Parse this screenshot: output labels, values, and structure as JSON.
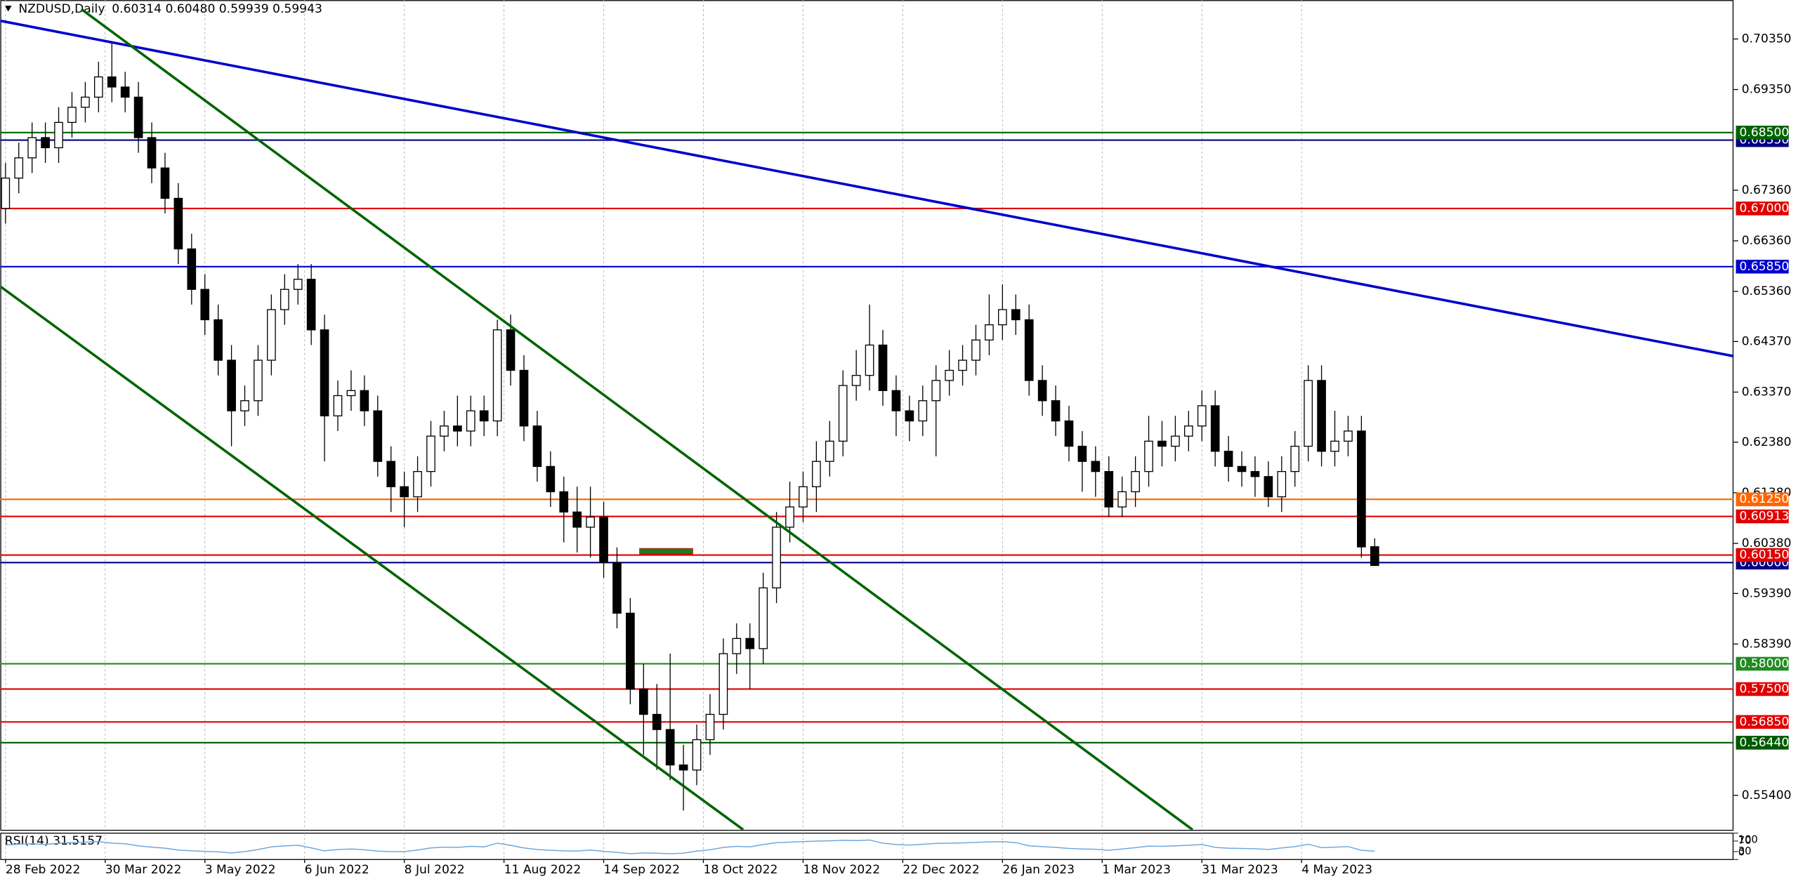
{
  "chart_data": {
    "type": "candlestick",
    "title": "NZDUSD,Daily",
    "subtitle": "0.60314 0.60480 0.59939 0.59943",
    "color_up": "#ffffff",
    "color_down": "#000000",
    "open": [
      0.67,
      0.676,
      0.68,
      0.684,
      0.682,
      0.687,
      0.69,
      0.692,
      0.696,
      0.694,
      0.692,
      0.684,
      0.678,
      0.672,
      0.662,
      0.654,
      0.648,
      0.64,
      0.63,
      0.632,
      0.64,
      0.65,
      0.654,
      0.656,
      0.646,
      0.629,
      0.633,
      0.634,
      0.63,
      0.62,
      0.615,
      0.613,
      0.618,
      0.625,
      0.627,
      0.626,
      0.63,
      0.628,
      0.646,
      0.638,
      0.627,
      0.619,
      0.614,
      0.61,
      0.607,
      0.609,
      0.6,
      0.59,
      0.575,
      0.57,
      0.567,
      0.56,
      0.559,
      0.565,
      0.57,
      0.582,
      0.585,
      0.583,
      0.595,
      0.607,
      0.611,
      0.615,
      0.62,
      0.624,
      0.635,
      0.637,
      0.643,
      0.634,
      0.63,
      0.628,
      0.632,
      0.636,
      0.638,
      0.64,
      0.644,
      0.647,
      0.65,
      0.648,
      0.636,
      0.632,
      0.628,
      0.623,
      0.62,
      0.618,
      0.611,
      0.614,
      0.618,
      0.624,
      0.623,
      0.625,
      0.627,
      0.631,
      0.622,
      0.619,
      0.618,
      0.617,
      0.613,
      0.618,
      0.623,
      0.636,
      0.622,
      0.624,
      0.626,
      0.60314
    ],
    "high": [
      0.679,
      0.683,
      0.687,
      0.687,
      0.69,
      0.693,
      0.695,
      0.699,
      0.703,
      0.697,
      0.695,
      0.687,
      0.681,
      0.675,
      0.665,
      0.657,
      0.651,
      0.643,
      0.635,
      0.643,
      0.653,
      0.657,
      0.659,
      0.659,
      0.649,
      0.636,
      0.638,
      0.637,
      0.633,
      0.623,
      0.618,
      0.621,
      0.628,
      0.63,
      0.633,
      0.633,
      0.633,
      0.648,
      0.649,
      0.641,
      0.63,
      0.622,
      0.617,
      0.615,
      0.615,
      0.612,
      0.603,
      0.593,
      0.58,
      0.576,
      0.582,
      0.564,
      0.568,
      0.574,
      0.585,
      0.588,
      0.588,
      0.598,
      0.61,
      0.616,
      0.618,
      0.624,
      0.628,
      0.638,
      0.642,
      0.651,
      0.646,
      0.637,
      0.633,
      0.635,
      0.639,
      0.642,
      0.643,
      0.647,
      0.653,
      0.655,
      0.653,
      0.651,
      0.639,
      0.635,
      0.631,
      0.626,
      0.623,
      0.621,
      0.617,
      0.621,
      0.629,
      0.628,
      0.629,
      0.63,
      0.634,
      0.634,
      0.625,
      0.622,
      0.621,
      0.62,
      0.621,
      0.626,
      0.639,
      0.639,
      0.63,
      0.629,
      0.629,
      0.6048
    ],
    "low": [
      0.667,
      0.673,
      0.677,
      0.679,
      0.679,
      0.684,
      0.687,
      0.689,
      0.691,
      0.689,
      0.681,
      0.675,
      0.669,
      0.659,
      0.651,
      0.645,
      0.637,
      0.623,
      0.627,
      0.629,
      0.637,
      0.647,
      0.651,
      0.643,
      0.62,
      0.626,
      0.63,
      0.627,
      0.617,
      0.61,
      0.607,
      0.61,
      0.615,
      0.622,
      0.623,
      0.623,
      0.625,
      0.625,
      0.635,
      0.624,
      0.616,
      0.611,
      0.604,
      0.602,
      0.601,
      0.597,
      0.587,
      0.572,
      0.562,
      0.559,
      0.557,
      0.551,
      0.556,
      0.562,
      0.567,
      0.578,
      0.575,
      0.58,
      0.592,
      0.604,
      0.608,
      0.61,
      0.617,
      0.621,
      0.632,
      0.634,
      0.631,
      0.625,
      0.624,
      0.625,
      0.621,
      0.633,
      0.635,
      0.637,
      0.641,
      0.644,
      0.645,
      0.633,
      0.629,
      0.625,
      0.62,
      0.614,
      0.613,
      0.609,
      0.609,
      0.611,
      0.615,
      0.619,
      0.62,
      0.622,
      0.624,
      0.619,
      0.616,
      0.615,
      0.613,
      0.611,
      0.61,
      0.615,
      0.62,
      0.619,
      0.619,
      0.621,
      0.601,
      0.59939
    ],
    "close": [
      0.676,
      0.68,
      0.684,
      0.682,
      0.687,
      0.69,
      0.692,
      0.696,
      0.694,
      0.692,
      0.684,
      0.678,
      0.672,
      0.662,
      0.654,
      0.648,
      0.64,
      0.63,
      0.632,
      0.64,
      0.65,
      0.654,
      0.656,
      0.646,
      0.629,
      0.633,
      0.634,
      0.63,
      0.62,
      0.615,
      0.613,
      0.618,
      0.625,
      0.627,
      0.626,
      0.63,
      0.628,
      0.646,
      0.638,
      0.627,
      0.619,
      0.614,
      0.61,
      0.607,
      0.609,
      0.6,
      0.59,
      0.575,
      0.57,
      0.567,
      0.56,
      0.559,
      0.565,
      0.57,
      0.582,
      0.585,
      0.583,
      0.595,
      0.607,
      0.611,
      0.615,
      0.62,
      0.624,
      0.635,
      0.637,
      0.643,
      0.634,
      0.63,
      0.628,
      0.632,
      0.636,
      0.638,
      0.64,
      0.644,
      0.647,
      0.65,
      0.648,
      0.636,
      0.632,
      0.628,
      0.623,
      0.62,
      0.618,
      0.611,
      0.614,
      0.618,
      0.624,
      0.623,
      0.625,
      0.627,
      0.631,
      0.622,
      0.619,
      0.618,
      0.617,
      0.613,
      0.618,
      0.623,
      0.636,
      0.622,
      0.624,
      0.626,
      0.6031,
      0.59943
    ],
    "xlim": [
      -0.4,
      130
    ],
    "ylim": [
      0.5472,
      0.7112
    ],
    "xticks": [
      {
        "value": 0,
        "label": "28 Feb 2022"
      },
      {
        "value": 7.5,
        "label": "30 Mar 2022"
      },
      {
        "value": 15,
        "label": "3 May 2022"
      },
      {
        "value": 22.5,
        "label": "6 Jun 2022"
      },
      {
        "value": 30,
        "label": "8 Jul 2022"
      },
      {
        "value": 37.5,
        "label": "11 Aug 2022"
      },
      {
        "value": 45,
        "label": "14 Sep 2022"
      },
      {
        "value": 52.5,
        "label": "18 Oct 2022"
      },
      {
        "value": 60,
        "label": "18 Nov 2022"
      },
      {
        "value": 67.5,
        "label": "22 Dec 2022"
      },
      {
        "value": 75,
        "label": "26 Jan 2023"
      },
      {
        "value": 82.5,
        "label": "1 Mar 2023"
      },
      {
        "value": 90,
        "label": "31 Mar 2023"
      },
      {
        "value": 97.5,
        "label": "4 May 2023"
      }
    ],
    "yticks": [
      {
        "value": 0.7035,
        "label": "0.70350"
      },
      {
        "value": 0.6935,
        "label": "0.69350"
      },
      {
        "value": 0.6736,
        "label": "0.67360"
      },
      {
        "value": 0.6636,
        "label": "0.66360"
      },
      {
        "value": 0.6536,
        "label": "0.65360"
      },
      {
        "value": 0.6437,
        "label": "0.64370"
      },
      {
        "value": 0.6337,
        "label": "0.63370"
      },
      {
        "value": 0.6238,
        "label": "0.62380"
      },
      {
        "value": 0.6138,
        "label": "0.61380"
      },
      {
        "value": 0.6038,
        "label": "0.60380"
      },
      {
        "value": 0.5939,
        "label": "0.59390"
      },
      {
        "value": 0.5839,
        "label": "0.58390"
      },
      {
        "value": 0.554,
        "label": "0.55400"
      }
    ],
    "grid": true,
    "levels": [
      {
        "value": 0.6835,
        "label": "0.68350",
        "color": "#000080"
      },
      {
        "value": 0.685,
        "label": "0.68500",
        "color": "#006400"
      },
      {
        "value": 0.67,
        "label": "0.67000",
        "color": "#e00000"
      },
      {
        "value": 0.6585,
        "label": "0.65850",
        "color": "#0000cd"
      },
      {
        "value": 0.6125,
        "label": "0.61250",
        "color": "#ff6600"
      },
      {
        "value": 0.60913,
        "label": "0.60913",
        "color": "#e00000"
      },
      {
        "value": 0.6,
        "label": "0.60000",
        "color": "#000080"
      },
      {
        "value": 0.6015,
        "label": "0.60150",
        "color": "#e00000"
      },
      {
        "value": 0.58,
        "label": "0.58000",
        "color": "#228b22"
      },
      {
        "value": 0.575,
        "label": "0.57500",
        "color": "#e00000"
      },
      {
        "value": 0.5685,
        "label": "0.56850",
        "color": "#e00000"
      },
      {
        "value": 0.5644,
        "label": "0.56440",
        "color": "#005a00"
      }
    ],
    "trendlines": [
      {
        "color": "#0000cd",
        "x": [
          -0.4,
          130
        ],
        "values": [
          0.7071,
          0.6408
        ]
      },
      {
        "color": "#006400",
        "x": [
          5.7,
          89.3
        ],
        "values": [
          0.7094,
          0.5472
        ]
      },
      {
        "color": "#006400",
        "x": [
          -0.4,
          55.5
        ],
        "values": [
          0.6546,
          0.5472
        ]
      }
    ],
    "zone": {
      "color": "#1f7a1f",
      "x": [
        47.7,
        51.7
      ],
      "values": [
        0.6017,
        0.6028
      ]
    },
    "rsi": {
      "title": "RSI(14) 31.5157",
      "color": "#6fa8dc",
      "ylim": [
        0,
        100
      ],
      "yticks": [
        0,
        30,
        70,
        100
      ],
      "values": [
        55,
        58,
        60,
        57,
        62,
        64,
        66,
        68,
        62,
        60,
        52,
        47,
        43,
        36,
        33,
        31,
        29,
        25,
        30,
        38,
        48,
        52,
        54,
        44,
        33,
        38,
        40,
        37,
        32,
        30,
        30,
        36,
        44,
        47,
        46,
        50,
        48,
        62,
        54,
        44,
        38,
        35,
        33,
        32,
        36,
        31,
        27,
        22,
        25,
        24,
        22,
        24,
        32,
        37,
        46,
        50,
        48,
        57,
        64,
        66,
        68,
        70,
        71,
        73,
        72,
        74,
        62,
        57,
        55,
        58,
        61,
        62,
        63,
        65,
        67,
        68,
        64,
        52,
        49,
        46,
        42,
        40,
        39,
        35,
        40,
        45,
        51,
        50,
        52,
        54,
        57,
        46,
        43,
        42,
        41,
        38,
        44,
        49,
        58,
        45,
        47,
        49,
        35,
        31.5157
      ]
    }
  }
}
